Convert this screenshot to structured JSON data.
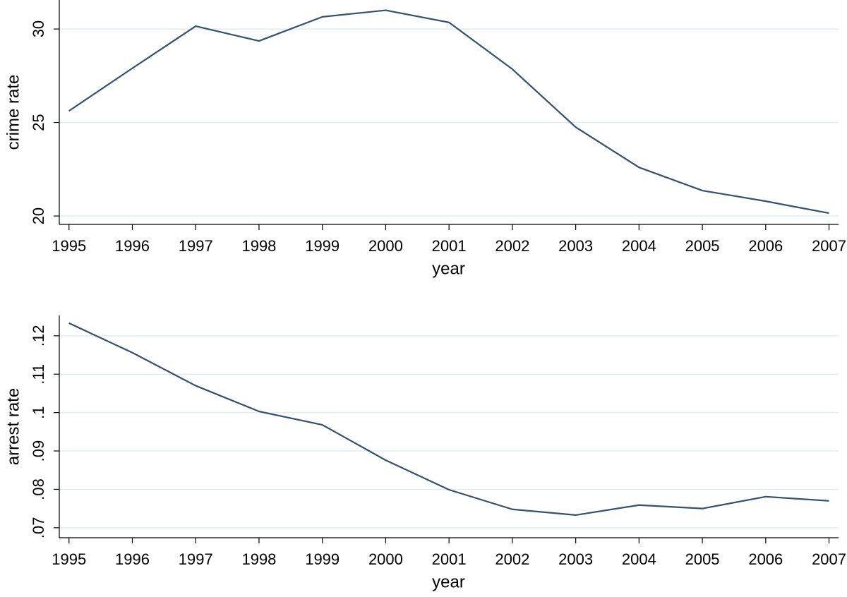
{
  "chart_data": [
    {
      "type": "line",
      "x_label": "year",
      "y_label": "crime rate",
      "x": [
        1995,
        1996,
        1997,
        1998,
        1999,
        2000,
        2001,
        2002,
        2003,
        2004,
        2005,
        2006,
        2007
      ],
      "values": [
        25.62,
        27.9,
        30.15,
        29.36,
        30.65,
        31.0,
        30.35,
        27.85,
        24.75,
        22.6,
        21.36,
        20.79,
        20.15
      ],
      "color": "#34506f",
      "xlim": [
        1994.88,
        2007.15
      ],
      "xticks": [
        1995,
        1996,
        1997,
        1998,
        1999,
        2000,
        2001,
        2002,
        2003,
        2004,
        2005,
        2006,
        2007
      ],
      "ylim": [
        19.55,
        31.55
      ],
      "yticks": [
        20,
        25,
        30
      ],
      "grid": true
    },
    {
      "type": "line",
      "x_label": "year",
      "y_label": "arrest rate",
      "x": [
        1995,
        1996,
        1997,
        1998,
        1999,
        2000,
        2001,
        2002,
        2003,
        2004,
        2005,
        2006,
        2007
      ],
      "values": [
        0.1233,
        0.1156,
        0.107,
        0.1003,
        0.0968,
        0.0876,
        0.0799,
        0.0748,
        0.0733,
        0.0759,
        0.075,
        0.0781,
        0.077
      ],
      "color": "#34506f",
      "xlim": [
        1994.88,
        2007.15
      ],
      "xticks": [
        1995,
        1996,
        1997,
        1998,
        1999,
        2000,
        2001,
        2002,
        2003,
        2004,
        2005,
        2006,
        2007
      ],
      "ylim": [
        0.0674,
        0.1253
      ],
      "yticks": [
        {
          "value": 0.07,
          "label": ".07"
        },
        {
          "value": 0.08,
          "label": ".08"
        },
        {
          "value": 0.09,
          "label": ".09"
        },
        {
          "value": 0.1,
          "label": ".1"
        },
        {
          "value": 0.11,
          "label": ".11"
        },
        {
          "value": 0.12,
          "label": ".12"
        }
      ],
      "grid": true
    }
  ]
}
